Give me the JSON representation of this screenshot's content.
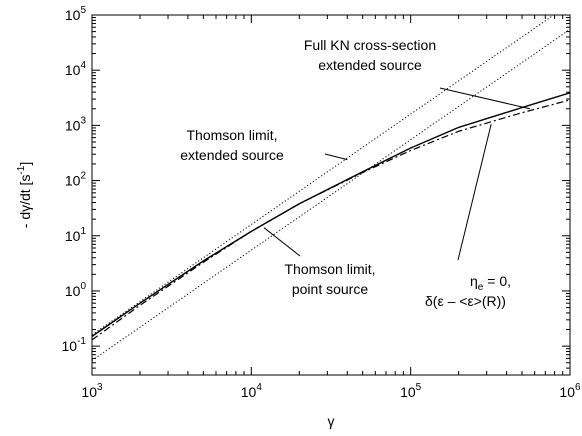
{
  "chart_data": {
    "type": "line",
    "title": "",
    "xlabel": "γ",
    "ylabel": {
      "prefix": "- dγ/dt [s",
      "sup": "-1",
      "suffix": "]"
    },
    "x_scale": "log",
    "y_scale": "log",
    "xlim": [
      1000,
      1000000
    ],
    "ylim": [
      0.03,
      100000
    ],
    "grid": false,
    "legend": "none",
    "x_ticks": [
      {
        "base": "10",
        "exp": "3",
        "value": 1000
      },
      {
        "base": "10",
        "exp": "4",
        "value": 10000
      },
      {
        "base": "10",
        "exp": "5",
        "value": 100000
      },
      {
        "base": "10",
        "exp": "6",
        "value": 1000000
      }
    ],
    "y_ticks": [
      {
        "base": "10",
        "exp": "-1",
        "value": 0.1
      },
      {
        "base": "10",
        "exp": "0",
        "value": 1
      },
      {
        "base": "10",
        "exp": "1",
        "value": 10
      },
      {
        "base": "10",
        "exp": "2",
        "value": 100
      },
      {
        "base": "10",
        "exp": "3",
        "value": 1000
      },
      {
        "base": "10",
        "exp": "4",
        "value": 10000
      },
      {
        "base": "10",
        "exp": "5",
        "value": 100000
      }
    ],
    "series": [
      {
        "style": "solid",
        "x": [
          1000,
          2000,
          5000,
          10000,
          20000,
          50000,
          100000,
          200000,
          500000,
          1000000
        ],
        "y": [
          0.15,
          0.6,
          3.5,
          12,
          38,
          145,
          390,
          920,
          2100,
          3900
        ]
      },
      {
        "style": "dashdot",
        "x": [
          1000,
          2000,
          5000,
          10000,
          20000,
          50000,
          100000,
          200000,
          500000,
          1000000
        ],
        "y": [
          0.13,
          0.55,
          3.3,
          12,
          38,
          140,
          350,
          780,
          1700,
          2900
        ]
      },
      {
        "style": "dotted",
        "x": [
          1000,
          1000000
        ],
        "y": [
          0.16,
          160000
        ]
      },
      {
        "style": "dotted",
        "x": [
          1000,
          1000000
        ],
        "y": [
          0.055,
          55000
        ]
      }
    ],
    "annotations": [
      {
        "lines": [
          "Full KN cross-section",
          "extended source"
        ],
        "arrow_to": {
          "x": 560000,
          "y": 2000
        }
      },
      {
        "lines": [
          "Thomson limit,",
          "extended source"
        ],
        "arrow_to": {
          "x": 40000,
          "y": 240
        }
      },
      {
        "lines": [
          "Thomson limit,",
          "point source"
        ],
        "arrow_to": {
          "x": 12000,
          "y": 14
        }
      },
      {
        "lines_special": "eta",
        "arrow_to": {
          "x": 320000,
          "y": 1050
        }
      }
    ],
    "eta_label": {
      "sym": "η",
      "sub": "e",
      "rest": " = 0,",
      "line2": "δ(ε – <ε>(R))"
    }
  }
}
